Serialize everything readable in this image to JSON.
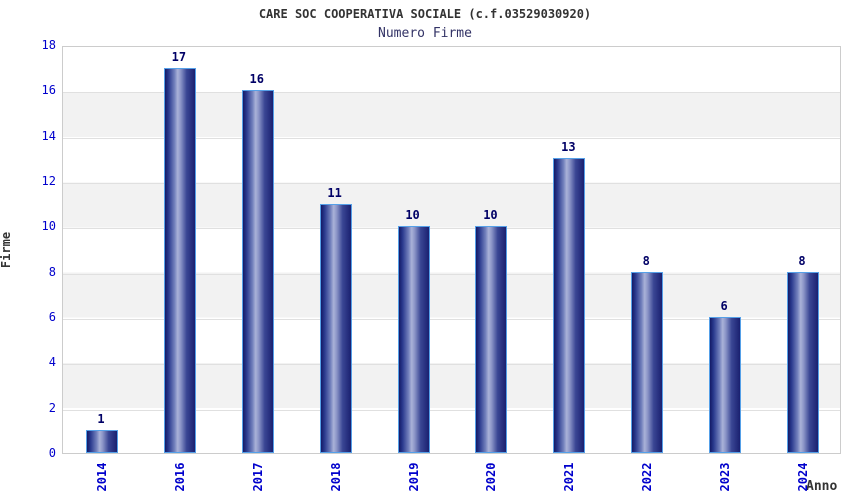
{
  "title": "CARE SOC COOPERATIVA SOCIALE (c.f.03529030920)",
  "subtitle": "Numero Firme",
  "chart_data": {
    "type": "bar",
    "categories": [
      "2014",
      "2016",
      "2017",
      "2018",
      "2019",
      "2020",
      "2021",
      "2022",
      "2023",
      "2024"
    ],
    "values": [
      1,
      17,
      16,
      11,
      10,
      10,
      13,
      8,
      6,
      8
    ],
    "title": "CARE SOC COOPERATIVA SOCIALE (c.f.03529030920)",
    "subtitle": "Numero Firme",
    "xlabel": "Anno",
    "ylabel": "Firme",
    "ylim": [
      0,
      18
    ],
    "yticks": [
      0,
      2,
      4,
      6,
      8,
      10,
      12,
      14,
      16,
      18
    ],
    "grid": "alternating horizontal gray bands every 2 units",
    "legend": "none",
    "value_labels_shown": true,
    "x_tick_rotation_deg": 90
  },
  "colors": {
    "title_text": "#333333",
    "subtitle_text": "#333366",
    "tick_label": "#0000cc",
    "value_label": "#000066",
    "axis_title": "#333333",
    "band_gray": "#f2f2f2",
    "plot_border": "#cccccc",
    "bar_border": "#55a0e8",
    "bar_gradient_dark": "#141a66",
    "bar_gradient_light": "#aab2d8"
  }
}
